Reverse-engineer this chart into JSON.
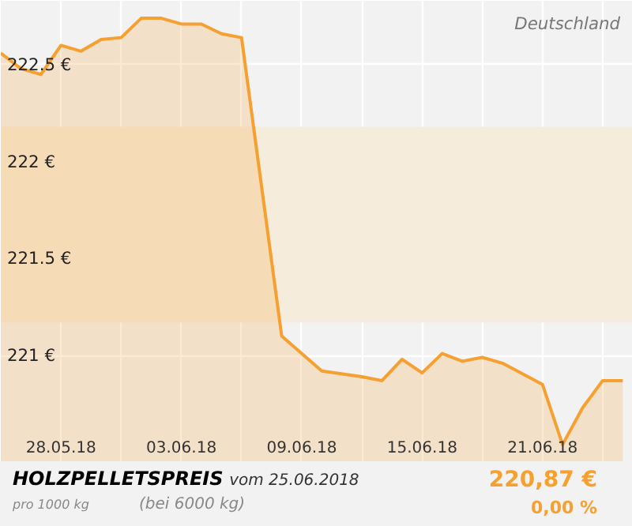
{
  "chart_data": {
    "type": "area",
    "title": "HOLZPELLETSPREIS",
    "subtitle": "vom 25.06.2018",
    "annotations": [
      "Deutschland",
      "pro 1000 kg",
      "(bei 6000 kg)",
      "220,87 €",
      "0,00 %"
    ],
    "x": [
      "2018-05-25",
      "2018-05-26",
      "2018-05-27",
      "2018-05-28",
      "2018-05-29",
      "2018-05-30",
      "2018-05-31",
      "2018-06-01",
      "2018-06-02",
      "2018-06-03",
      "2018-06-04",
      "2018-06-05",
      "2018-06-06",
      "2018-06-08",
      "2018-06-10",
      "2018-06-12",
      "2018-06-13",
      "2018-06-14",
      "2018-06-15",
      "2018-06-16",
      "2018-06-17",
      "2018-06-18",
      "2018-06-19",
      "2018-06-21",
      "2018-06-22",
      "2018-06-23",
      "2018-06-24",
      "2018-06-25"
    ],
    "series": [
      {
        "color": "#f5a030",
        "values": [
          222.56,
          222.48,
          222.45,
          222.6,
          222.57,
          222.63,
          222.64,
          222.74,
          222.74,
          222.71,
          222.71,
          222.66,
          222.64,
          221.1,
          220.92,
          220.89,
          220.87,
          220.98,
          220.91,
          221.01,
          220.97,
          220.99,
          220.96,
          220.85,
          220.54,
          220.73,
          220.87,
          220.87
        ]
      }
    ],
    "xlim": [
      "2018-05-25",
      "2018-06-25T12:00"
    ],
    "xticks": [
      {
        "value": "2018-05-28",
        "label": "28.05.18"
      },
      {
        "value": "2018-05-31",
        "label": null
      },
      {
        "value": "2018-06-03",
        "label": "03.06.18"
      },
      {
        "value": "2018-06-06",
        "label": null
      },
      {
        "value": "2018-06-09",
        "label": "09.06.18"
      },
      {
        "value": "2018-06-12",
        "label": null
      },
      {
        "value": "2018-06-15",
        "label": "15.06.18"
      },
      {
        "value": "2018-06-18",
        "label": null
      },
      {
        "value": "2018-06-21",
        "label": "21.06.18"
      },
      {
        "value": "2018-06-24",
        "label": null
      }
    ],
    "ylim": [
      220.45,
      222.83
    ],
    "yticks": [
      {
        "value": 221,
        "label": "221 €"
      },
      {
        "value": 221.5,
        "label": "221.5 €"
      },
      {
        "value": 222,
        "label": "222 €"
      },
      {
        "value": 222.5,
        "label": "222.5 €"
      }
    ],
    "bands": [
      {
        "axis": "y",
        "from": 221.17,
        "to": 222.18,
        "color": "#f5ecdc"
      }
    ],
    "grid": true
  }
}
